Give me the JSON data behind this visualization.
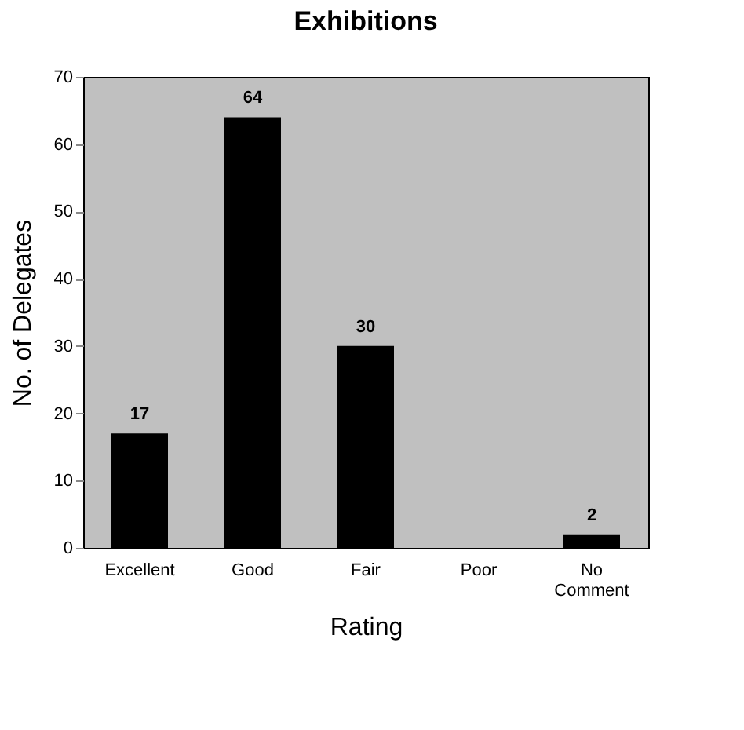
{
  "chart_data": {
    "type": "bar",
    "title": "Exhibitions",
    "xlabel": "Rating",
    "ylabel": "No. of Delegates",
    "categories": [
      "Excellent",
      "Good",
      "Fair",
      "Poor",
      "No Comment"
    ],
    "values": [
      17,
      64,
      30,
      0,
      2
    ],
    "value_labels": [
      "17",
      "64",
      "30",
      null,
      "2"
    ],
    "color": "#000000",
    "ylim": [
      0,
      70
    ],
    "yticks": [
      0,
      10,
      20,
      30,
      40,
      50,
      60,
      70
    ],
    "grid": false
  }
}
